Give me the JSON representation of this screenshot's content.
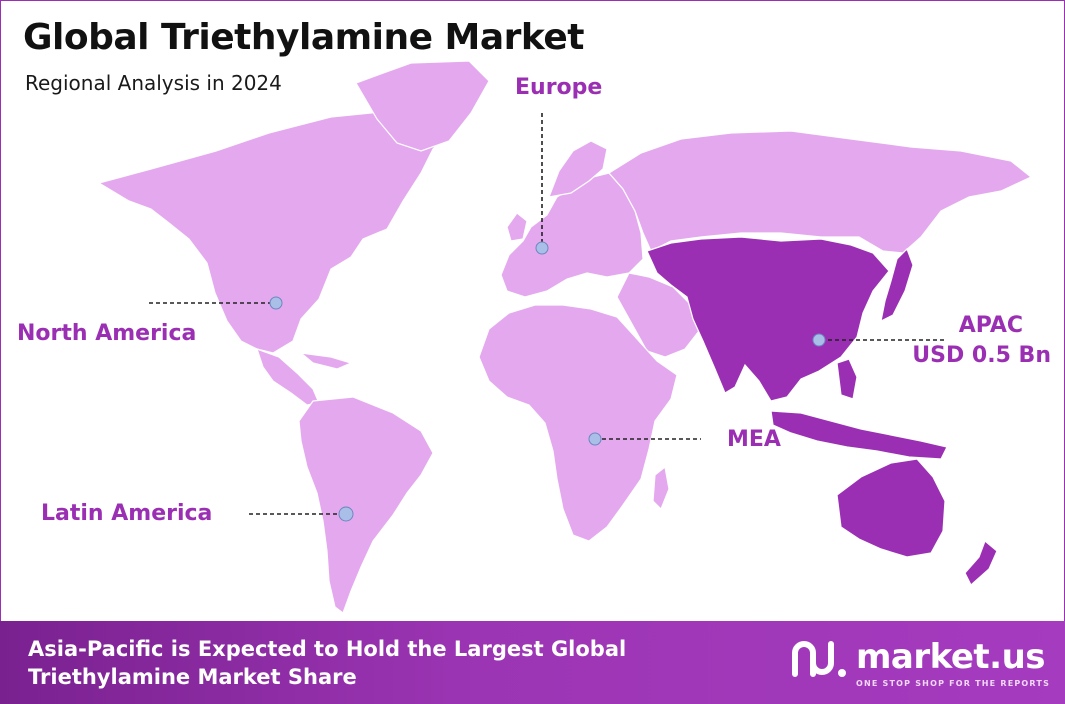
{
  "title": "Global Triethylamine Market",
  "subtitle": "Regional Analysis in 2024",
  "regions": {
    "europe": {
      "name": "Europe"
    },
    "north_america": {
      "name": "North America"
    },
    "apac": {
      "name": "APAC",
      "value": "USD 0.5 Bn"
    },
    "mea": {
      "name": "MEA"
    },
    "latin_america": {
      "name": "Latin America"
    }
  },
  "colors": {
    "land": "#e4a8ee",
    "highlight": "#9b2fb3",
    "label": "#9b2fb3",
    "marker": "#a9bfe8",
    "footer": "#8f2aa8"
  },
  "footer": {
    "line1": "Asia-Pacific is Expected to Hold the Largest Global",
    "line2": "Triethylamine Market Share"
  },
  "logo": {
    "name": "market.us",
    "tagline": "ONE STOP SHOP FOR THE REPORTS"
  }
}
